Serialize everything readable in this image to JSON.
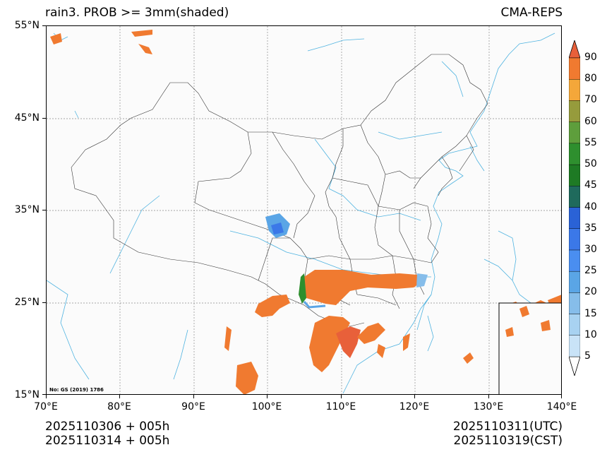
{
  "header": {
    "title": "rain3. PROB >= 3mm(shaded)",
    "model": "CMA-REPS"
  },
  "map": {
    "stamp": "No: GS (2019) 1786",
    "lat_labels": [
      "55°N",
      "45°N",
      "35°N",
      "25°N",
      "15°N"
    ],
    "lon_labels": [
      "70°E",
      "80°E",
      "90°E",
      "100°E",
      "110°E",
      "120°E",
      "130°E",
      "140°E"
    ],
    "lat_range": [
      15,
      55
    ],
    "lon_range": [
      70,
      140
    ]
  },
  "colorbar": {
    "levels": [
      "5",
      "10",
      "15",
      "20",
      "25",
      "30",
      "35",
      "40",
      "45",
      "50",
      "55",
      "60",
      "70",
      "80",
      "90"
    ],
    "colors": [
      "#e1f0fb",
      "#c9e3f7",
      "#a8d2f1",
      "#86bdea",
      "#5aa5e6",
      "#4a8ef0",
      "#3b78e8",
      "#2a62d6",
      "#1f6a5c",
      "#1e7a24",
      "#2e8f2e",
      "#5e9e3c",
      "#969b3c",
      "#f4a73a",
      "#f07a30",
      "#e8603a"
    ]
  },
  "footer": {
    "init_utc": "2025110306  +  005h",
    "init_cst": "2025110314  +  005h",
    "valid_utc": "2025110311(UTC)",
    "valid_cst": "2025110319(CST)"
  }
}
